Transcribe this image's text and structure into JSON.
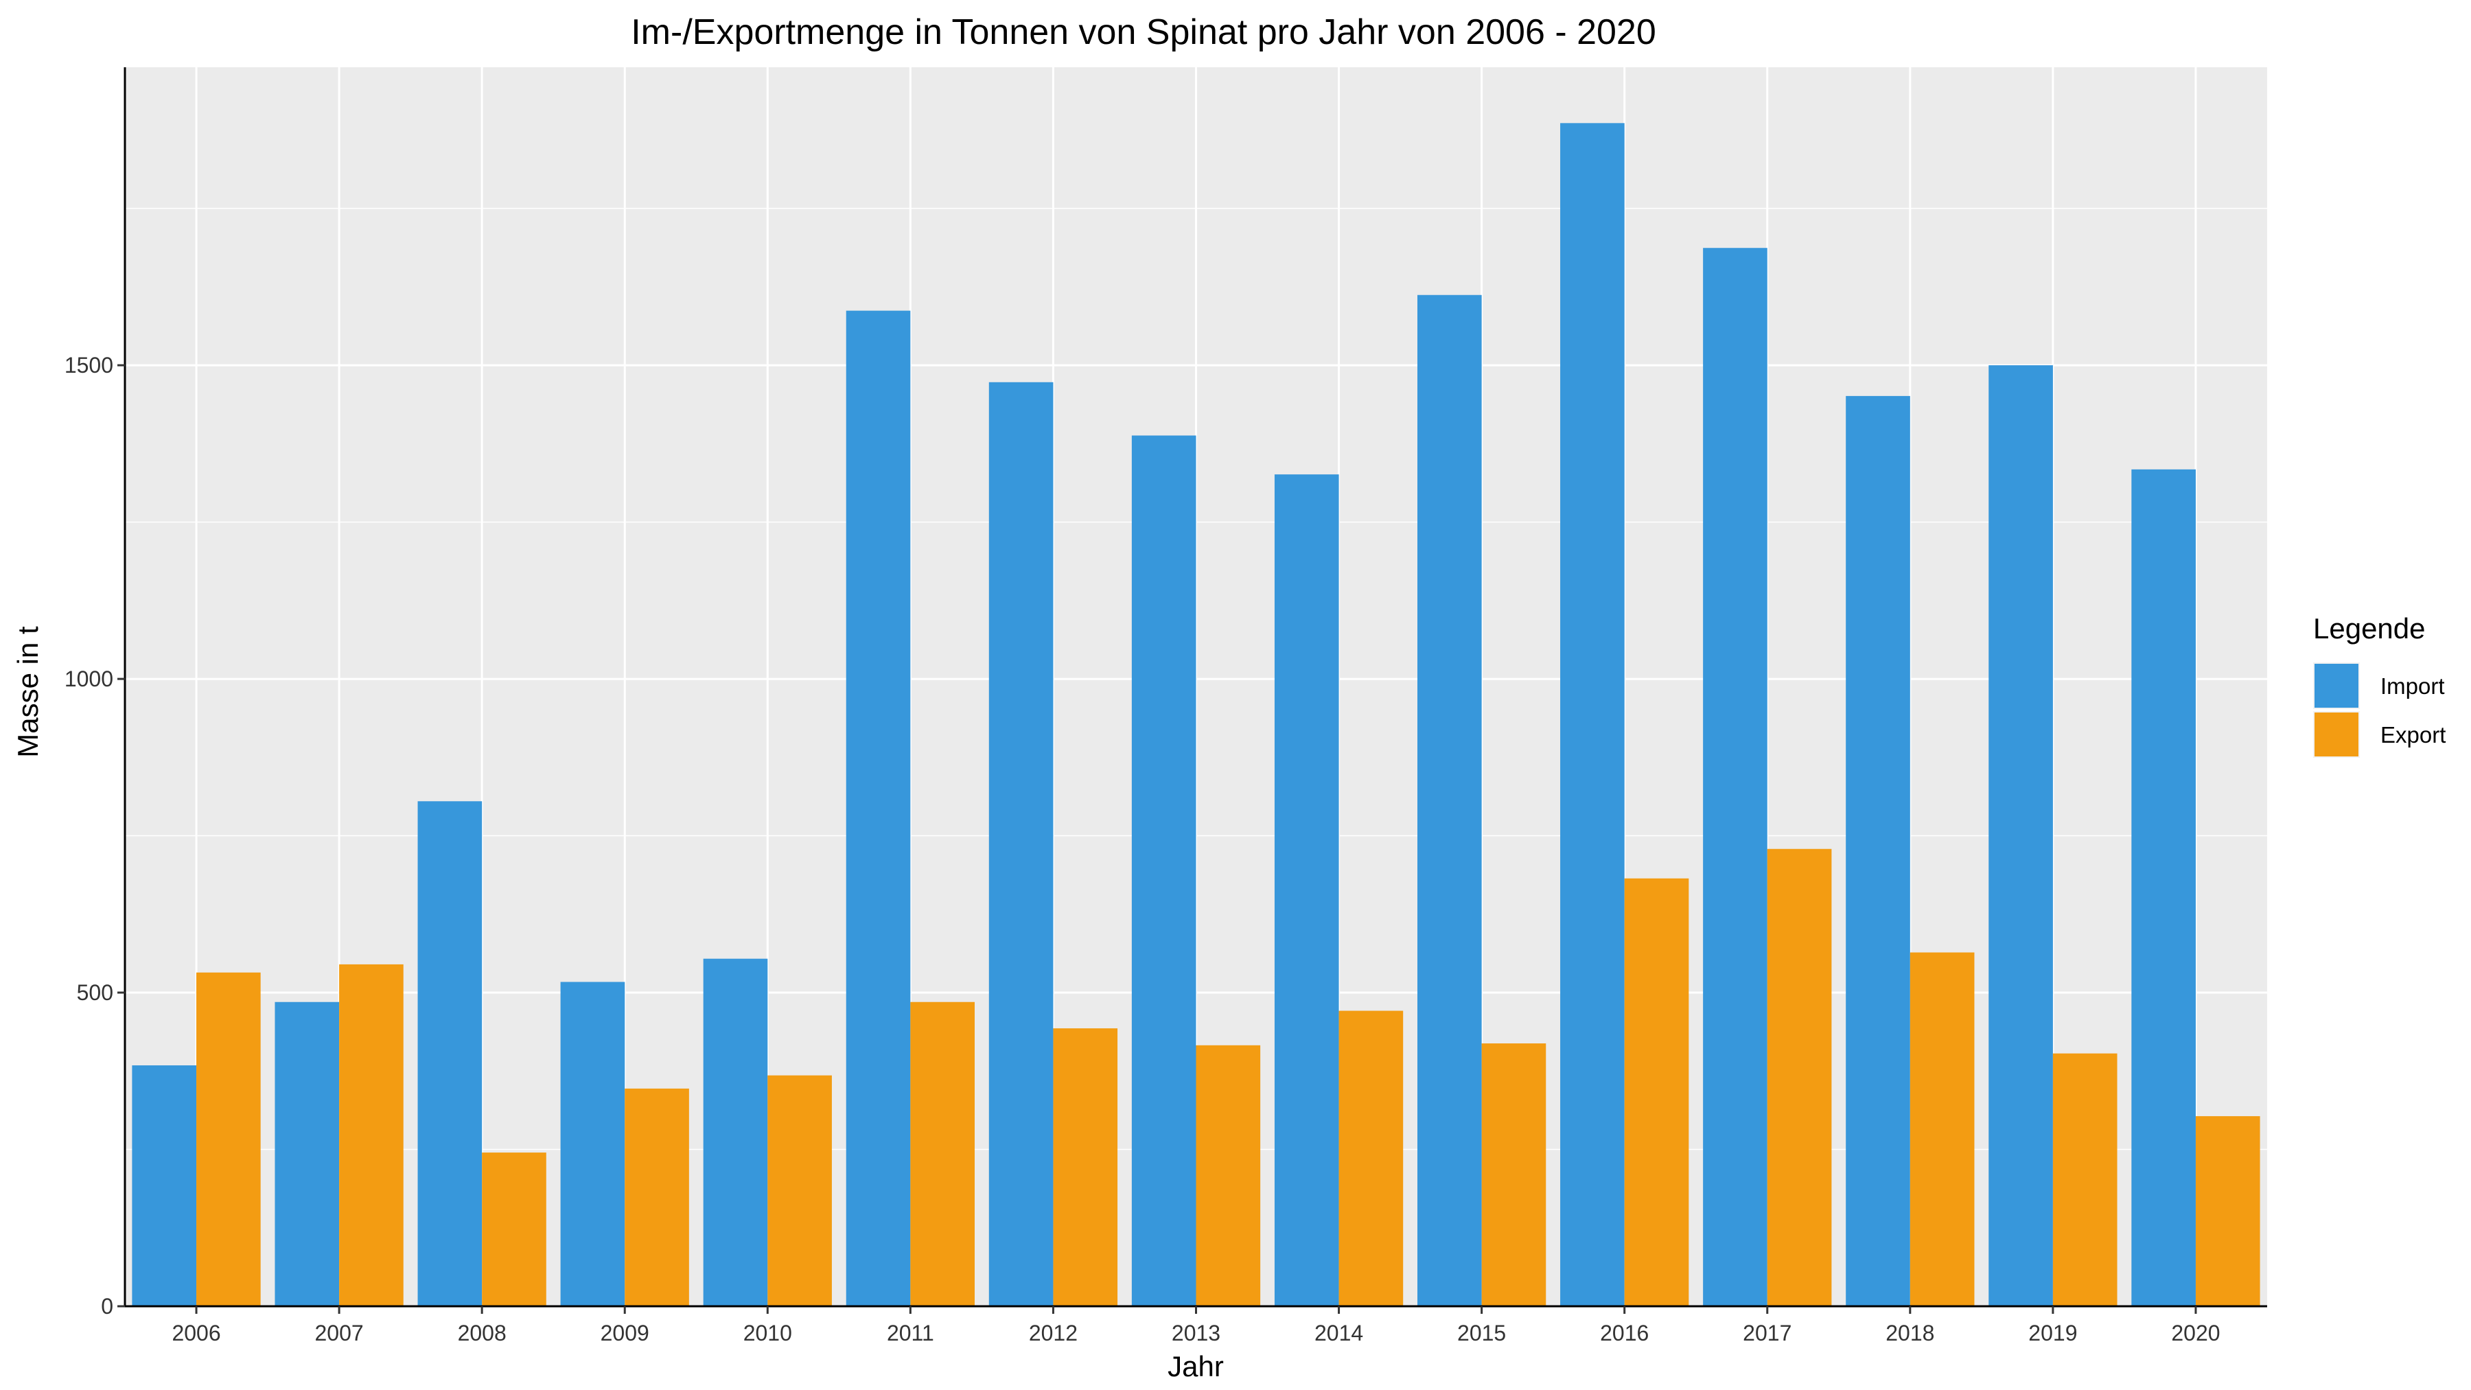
{
  "chart_data": {
    "type": "bar",
    "title": "Im-/Exportmenge in Tonnen von Spinat pro Jahr von 2006 - 2020",
    "xlabel": "Jahr",
    "ylabel": "Masse in t",
    "categories": [
      "2006",
      "2007",
      "2008",
      "2009",
      "2010",
      "2011",
      "2012",
      "2013",
      "2014",
      "2015",
      "2016",
      "2017",
      "2018",
      "2019",
      "2020"
    ],
    "series": [
      {
        "name": "Import",
        "color": "#3797DB",
        "values": [
          384,
          485,
          805,
          517,
          554,
          1587,
          1473,
          1388,
          1326,
          1612,
          1886,
          1687,
          1451,
          1500,
          1334
        ]
      },
      {
        "name": "Export",
        "color": "#F39C12",
        "values": [
          532,
          545,
          245,
          347,
          368,
          485,
          443,
          416,
          471,
          419,
          682,
          729,
          564,
          403,
          303
        ]
      }
    ],
    "ylim": [
      0,
      1975
    ],
    "yticks": [
      0,
      500,
      1000,
      1500
    ],
    "ytick_labels": [
      "0",
      "500",
      "1000",
      "1500"
    ],
    "legend": {
      "title": "Legende",
      "position": "right"
    },
    "grid": true,
    "panel_background": "#EBEBEB",
    "grid_color": "#FFFFFF"
  }
}
